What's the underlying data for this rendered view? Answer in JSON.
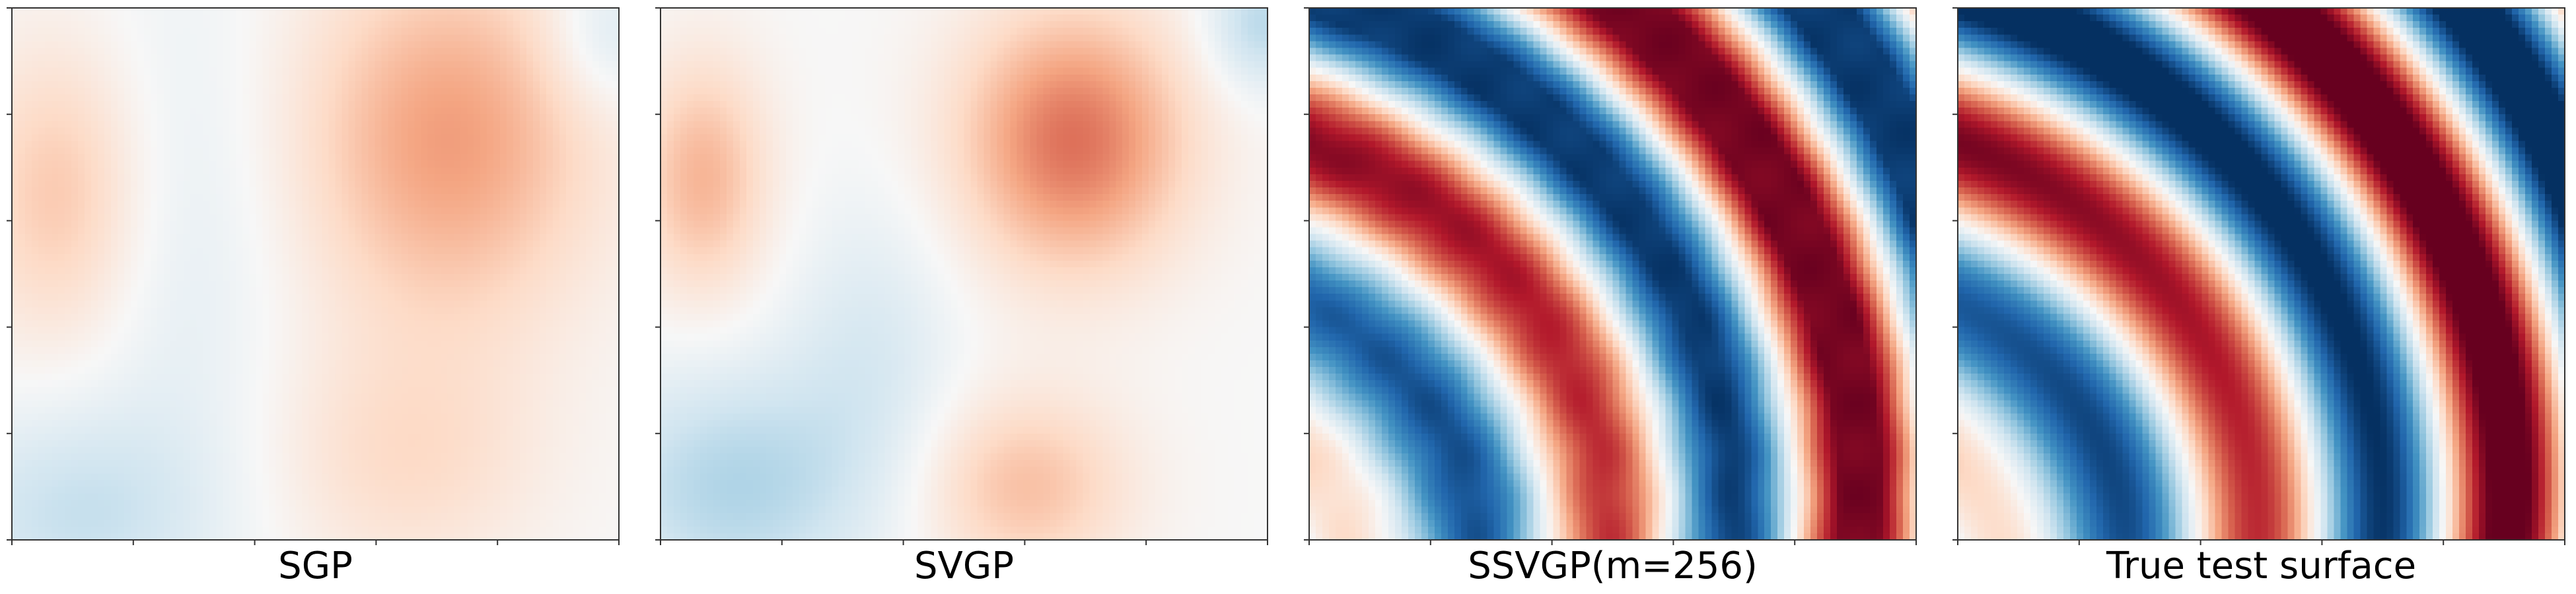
{
  "chart_data": [
    {
      "type": "heatmap",
      "title": "SGP",
      "colormap": "RdBu_r",
      "surface": "sgp"
    },
    {
      "type": "heatmap",
      "title": "SVGP",
      "colormap": "RdBu_r",
      "surface": "svgp"
    },
    {
      "type": "heatmap",
      "title": "SSVGP(m=256)",
      "colormap": "RdBu_r",
      "surface": "ssvgp"
    },
    {
      "type": "heatmap",
      "title": "True test surface",
      "colormap": "RdBu_r",
      "surface": "true"
    }
  ]
}
